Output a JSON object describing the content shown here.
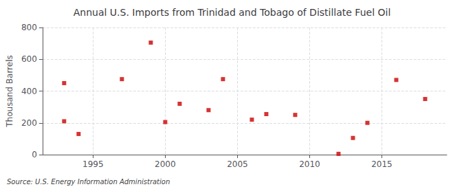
{
  "chart_data": {
    "type": "scatter",
    "title": "Annual U.S. Imports from Trinidad and Tobago of Distillate Fuel Oil",
    "ylabel": "Thousand Barrels",
    "annotation": "Source: U.S. Energy Information Administration",
    "x": [
      1993,
      1993,
      1994,
      1997,
      1999,
      2000,
      2001,
      2003,
      2004,
      2006,
      2007,
      2009,
      2012,
      2013,
      2014,
      2016,
      2018
    ],
    "values": [
      450,
      210,
      130,
      475,
      705,
      205,
      320,
      280,
      475,
      220,
      255,
      250,
      5,
      105,
      200,
      470,
      350
    ],
    "color": "#cc0000",
    "marker": "square",
    "xlim": [
      1991.5,
      2019.5
    ],
    "ylim": [
      0,
      800
    ],
    "xticks": [
      1995,
      2000,
      2005,
      2010,
      2015
    ],
    "yticks": [
      0,
      200,
      400,
      600,
      800
    ],
    "grid": true
  }
}
